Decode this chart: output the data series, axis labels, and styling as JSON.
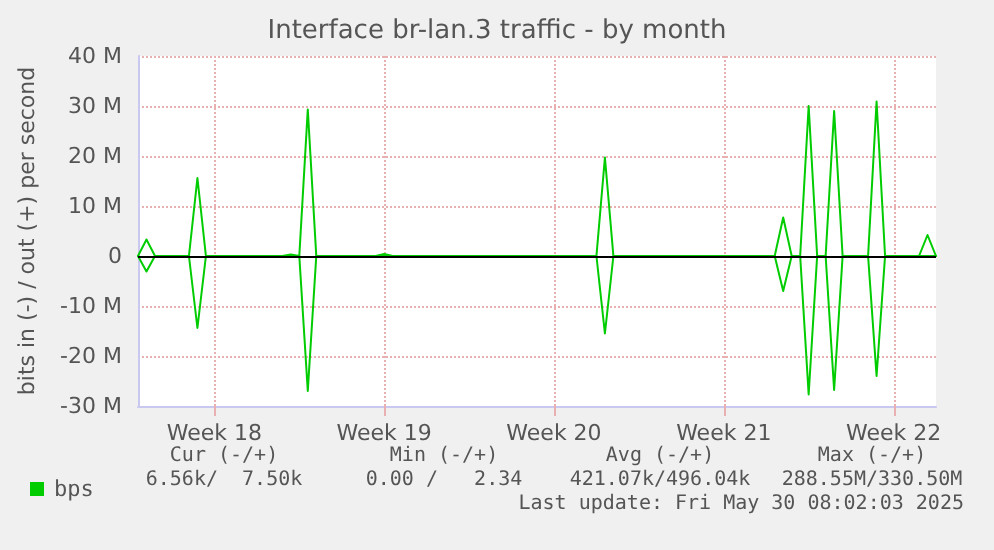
{
  "chart_data": {
    "type": "line",
    "title": "Interface br-lan.3 traffic - by month",
    "ylabel": "bits in (-) / out (+) per second",
    "categories": [
      null,
      null,
      null,
      null,
      null,
      null,
      null,
      null,
      null,
      "Week 18",
      null,
      null,
      null,
      null,
      null,
      null,
      null,
      null,
      null,
      null,
      null,
      null,
      null,
      null,
      null,
      null,
      null,
      null,
      null,
      "Week 19",
      null,
      null,
      null,
      null,
      null,
      null,
      null,
      null,
      null,
      null,
      null,
      null,
      null,
      null,
      null,
      null,
      null,
      null,
      null,
      "Week 20",
      null,
      null,
      null,
      null,
      null,
      null,
      null,
      null,
      null,
      null,
      null,
      null,
      null,
      null,
      null,
      null,
      null,
      null,
      null,
      "Week 21",
      null,
      null,
      null,
      null,
      null,
      null,
      null,
      null,
      null,
      null,
      null,
      null,
      null,
      null,
      null,
      null,
      null,
      null,
      null,
      "Week 22",
      null,
      null,
      null,
      null,
      null
    ],
    "ylim": [
      -30,
      40
    ],
    "yticks": [
      {
        "value": -30,
        "label": "-30 M"
      },
      {
        "value": -20,
        "label": "-20 M"
      },
      {
        "value": -10,
        "label": "-10 M"
      },
      0,
      {
        "value": 10,
        "label": "10 M"
      },
      {
        "value": 20,
        "label": "20 M"
      },
      {
        "value": 30,
        "label": "30 M"
      },
      {
        "value": 40,
        "label": "40 M"
      }
    ],
    "grid": true,
    "legend": "bottom left",
    "marker": "none",
    "line_style": "solid",
    "ref_lines": [
      {
        "axis": "y",
        "value": 0,
        "color": "#000000"
      }
    ],
    "series": [
      {
        "name": "bps",
        "color": "#00cc00",
        "values": [
          0,
          3.3,
          0,
          0,
          0,
          0,
          0,
          15.6,
          0,
          0,
          0,
          0,
          0,
          0,
          0,
          0,
          0,
          0,
          0.3,
          0,
          29.3,
          0,
          0,
          0,
          0,
          0,
          0,
          0,
          0,
          0.4,
          0,
          0,
          0,
          0,
          0,
          0,
          0,
          0,
          0,
          0,
          0,
          0,
          0,
          0,
          0,
          0,
          0,
          0,
          0,
          0,
          0,
          0,
          0,
          0,
          0,
          19.7,
          0,
          0,
          0,
          0,
          0,
          0,
          0,
          0,
          0,
          0,
          0,
          0,
          0,
          0,
          0,
          0,
          0,
          0,
          0,
          0,
          7.7,
          0,
          0,
          30,
          0,
          0,
          29,
          0,
          0,
          0,
          0,
          30.9,
          0,
          0,
          0,
          0,
          0,
          4.2,
          0
        ]
      },
      {
        "color": "#00cc00",
        "values": [
          0,
          -3.1,
          0,
          0,
          0,
          0,
          0,
          -14.4,
          0,
          0,
          0,
          0,
          0,
          0,
          0,
          0,
          0,
          0,
          0,
          0,
          -27,
          0,
          0,
          0,
          0,
          0,
          0,
          0,
          0,
          0,
          0,
          0,
          0,
          0,
          0,
          0,
          0,
          0,
          0,
          0,
          0,
          0,
          0,
          0,
          0,
          0,
          0,
          0,
          0,
          0,
          0,
          0,
          0,
          0,
          0,
          -15.5,
          0,
          0,
          0,
          0,
          0,
          0,
          0,
          0,
          0,
          0,
          0,
          0,
          0,
          0,
          0,
          0,
          0,
          0,
          0,
          0,
          -7,
          0,
          0,
          -27.7,
          0,
          0,
          -26.8,
          0,
          0,
          0,
          0,
          -24,
          0,
          0,
          0,
          0,
          0,
          0,
          0
        ]
      }
    ],
    "annotations": [
      "Cur (-/+)",
      "Min (-/+)",
      "Avg (-/+)",
      "Max (-/+)",
      "6.56k/  7.50k",
      "0.00 /   2.34",
      "421.07k/496.04k",
      "288.55M/330.50M",
      "Last update: Fri May 30 08:02:03 2025"
    ]
  }
}
